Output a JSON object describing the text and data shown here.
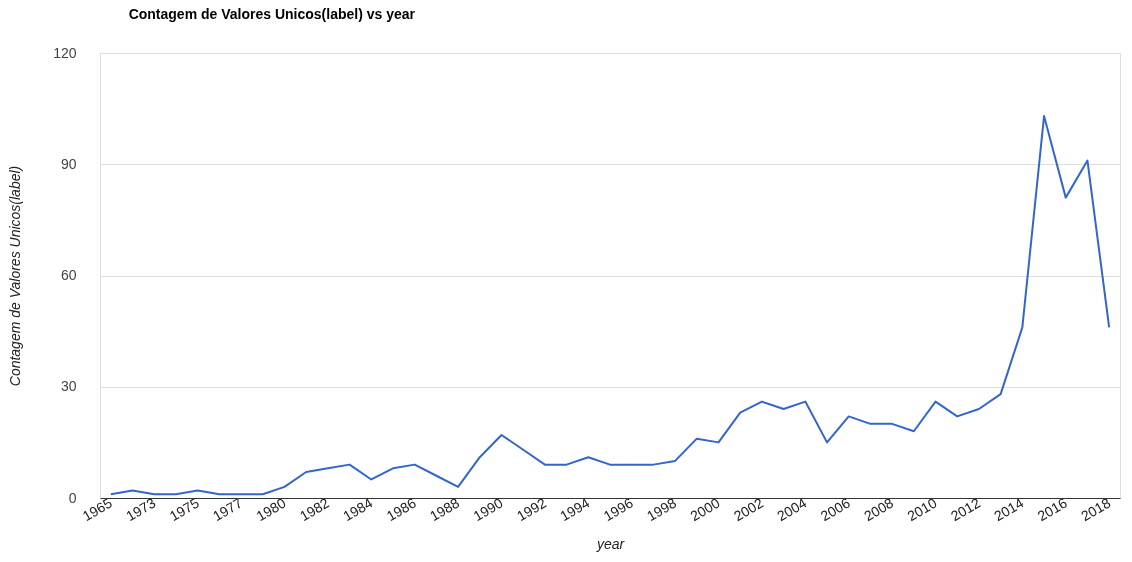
{
  "chart_data": {
    "type": "line",
    "title": "Contagem de Valores Unicos(label) vs year",
    "xlabel": "year",
    "ylabel": "Contagem de Valores Unicos(label)",
    "categories": [
      "1965",
      null,
      "1973",
      null,
      "1975",
      null,
      "1977",
      null,
      "1980",
      null,
      "1982",
      null,
      "1984",
      null,
      "1986",
      null,
      "1988",
      null,
      "1990",
      null,
      "1992",
      null,
      "1994",
      null,
      "1996",
      null,
      "1998",
      null,
      "2000",
      null,
      "2002",
      null,
      "2004",
      null,
      "2006",
      null,
      "2008",
      null,
      "2010",
      null,
      "2012",
      null,
      "2014",
      null,
      "2016",
      null,
      "2018"
    ],
    "series": [
      {
        "color": "#3366cc",
        "values": [
          1,
          2,
          1,
          1,
          2,
          1,
          1,
          1,
          3,
          7,
          8,
          9,
          5,
          8,
          9,
          6,
          3,
          11,
          17,
          13,
          9,
          9,
          11,
          9,
          9,
          9,
          10,
          16,
          15,
          23,
          26,
          24,
          26,
          15,
          22,
          20,
          20,
          18,
          26,
          22,
          24,
          28,
          46,
          103,
          81,
          91,
          46
        ]
      }
    ],
    "ylim": [
      0,
      120
    ],
    "yticks": [
      0,
      30,
      60,
      90,
      120
    ],
    "grid": "y",
    "marker": "none",
    "line_style": "solid"
  }
}
